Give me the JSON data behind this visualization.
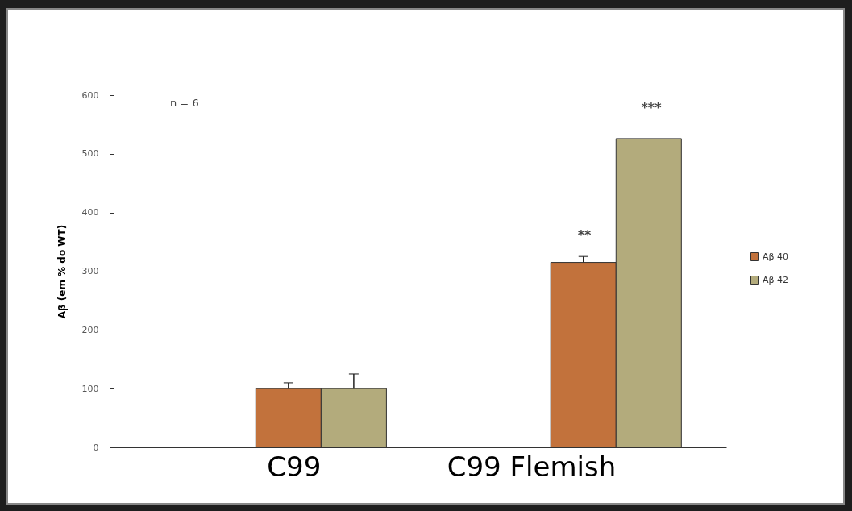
{
  "chart_data": {
    "type": "bar",
    "ylabel": "Aβ (em % do WT)",
    "categories": [
      "C99",
      "C99 Flemish"
    ],
    "series": [
      {
        "name": "Aβ 40",
        "color": "#c2723c",
        "values": [
          100,
          315
        ],
        "errors": [
          10,
          10
        ]
      },
      {
        "name": "Aβ 42",
        "color": "#b3ab7c",
        "values": [
          100,
          526
        ],
        "errors": [
          25,
          null
        ]
      }
    ],
    "ylim": [
      0,
      600
    ],
    "yticks": [
      0,
      100,
      200,
      300,
      400,
      500,
      600
    ],
    "grid": false,
    "legend": "right",
    "annotations": [
      "n = 6",
      "**",
      "***"
    ]
  }
}
